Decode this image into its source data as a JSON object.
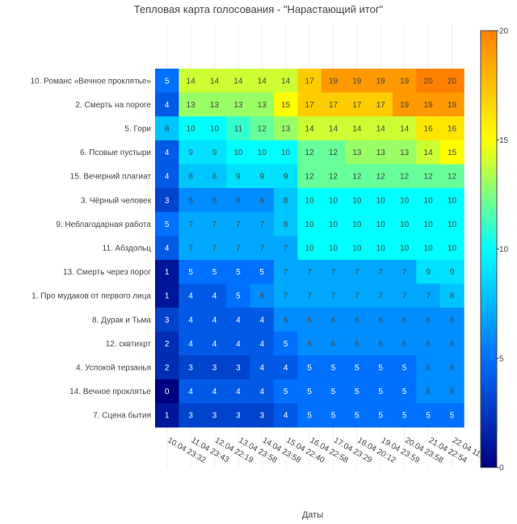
{
  "chart_data": {
    "type": "heatmap",
    "title": "Тепловая карта голосования - \"Нарастающий итог\"",
    "xlabel": "Даты",
    "ylabel": "",
    "x": [
      "10.04 23:32",
      "11.04 23:43",
      "12.04 22:19",
      "13.04 23:58",
      "14.04 23:58",
      "15.04 22:40",
      "16.04 22:58",
      "17.04 23:29",
      "18.04 20:12",
      "19.04 23:59",
      "20.04 23:58",
      "21.04 22:54",
      "22.04 11:01"
    ],
    "y": [
      "10. Романс «Вечное проклятье»",
      "2. Смерть на пороге",
      "5. Гори",
      "6. Псовые пустыри",
      "15. Вечерний плагиат",
      "3. Чёрный человек",
      "9. Неблагодарная работа",
      "11. Абздольц",
      "13. Смерть через порог",
      "1. Про мудаков от первого лица",
      "8. Дурак и Тьма",
      "12. сквтихрт",
      "4. Успокой терзанья",
      "14. Вечное проклятье",
      "7. Сцена бытия"
    ],
    "z": [
      [
        5,
        14,
        14,
        14,
        14,
        14,
        17,
        19,
        19,
        19,
        19,
        20,
        20
      ],
      [
        4,
        13,
        13,
        13,
        13,
        15,
        17,
        17,
        17,
        17,
        19,
        19,
        19
      ],
      [
        8,
        10,
        10,
        11,
        12,
        13,
        14,
        14,
        14,
        14,
        14,
        16,
        16
      ],
      [
        4,
        9,
        9,
        10,
        10,
        10,
        12,
        12,
        13,
        13,
        13,
        14,
        15
      ],
      [
        4,
        8,
        8,
        9,
        9,
        9,
        12,
        12,
        12,
        12,
        12,
        12,
        12
      ],
      [
        3,
        6,
        6,
        6,
        6,
        8,
        10,
        10,
        10,
        10,
        10,
        10,
        10
      ],
      [
        5,
        7,
        7,
        7,
        7,
        8,
        10,
        10,
        10,
        10,
        10,
        10,
        10
      ],
      [
        4,
        7,
        7,
        7,
        7,
        7,
        10,
        10,
        10,
        10,
        10,
        10,
        10
      ],
      [
        1,
        5,
        5,
        5,
        5,
        7,
        7,
        7,
        7,
        7,
        7,
        9,
        9
      ],
      [
        1,
        4,
        4,
        5,
        6,
        7,
        7,
        7,
        7,
        7,
        7,
        7,
        8
      ],
      [
        3,
        4,
        4,
        4,
        4,
        6,
        6,
        6,
        6,
        6,
        6,
        6,
        6
      ],
      [
        2,
        4,
        4,
        4,
        4,
        5,
        6,
        6,
        6,
        6,
        6,
        6,
        6
      ],
      [
        2,
        3,
        3,
        3,
        4,
        4,
        5,
        5,
        5,
        5,
        5,
        6,
        6
      ],
      [
        0,
        4,
        4,
        4,
        4,
        5,
        5,
        5,
        5,
        5,
        5,
        6,
        6
      ],
      [
        1,
        3,
        3,
        3,
        3,
        4,
        5,
        5,
        5,
        5,
        5,
        5,
        5
      ]
    ],
    "zrange": [
      0,
      20
    ],
    "colorbar_ticks": [
      0,
      5,
      10,
      15,
      20
    ],
    "colorscale": [
      "#000080",
      "#0070ff",
      "#00ffff",
      "#ffff00",
      "#ff8000"
    ]
  }
}
